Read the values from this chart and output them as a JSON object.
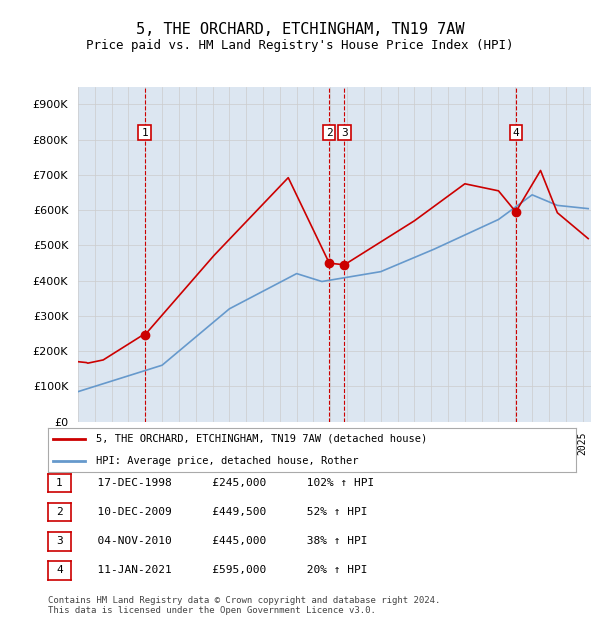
{
  "title": "5, THE ORCHARD, ETCHINGHAM, TN19 7AW",
  "subtitle": "Price paid vs. HM Land Registry's House Price Index (HPI)",
  "footer": "Contains HM Land Registry data © Crown copyright and database right 2024.\nThis data is licensed under the Open Government Licence v3.0.",
  "legend_line1": "5, THE ORCHARD, ETCHINGHAM, TN19 7AW (detached house)",
  "legend_line2": "HPI: Average price, detached house, Rother",
  "transactions": [
    {
      "num": 1,
      "date": "17-DEC-1998",
      "price": 245000,
      "pct": "102%",
      "arrow": "↑"
    },
    {
      "num": 2,
      "date": "10-DEC-2009",
      "price": 449500,
      "pct": "52%",
      "arrow": "↑"
    },
    {
      "num": 3,
      "date": "04-NOV-2010",
      "price": 445000,
      "pct": "38%",
      "arrow": "↑"
    },
    {
      "num": 4,
      "date": "11-JAN-2021",
      "price": 595000,
      "pct": "20%",
      "arrow": "↑"
    }
  ],
  "transaction_dates_decimal": [
    1998.96,
    2009.94,
    2010.84,
    2021.03
  ],
  "transaction_prices": [
    245000,
    449500,
    445000,
    595000
  ],
  "ylim": [
    0,
    950000
  ],
  "yticks": [
    0,
    100000,
    200000,
    300000,
    400000,
    500000,
    600000,
    700000,
    800000,
    900000
  ],
  "xlim_start": 1995.0,
  "xlim_end": 2025.5,
  "red_color": "#cc0000",
  "blue_color": "#6699cc",
  "bg_color": "#dce6f1",
  "plot_bg": "#ffffff",
  "grid_color": "#cccccc",
  "vline_color": "#cc0000"
}
